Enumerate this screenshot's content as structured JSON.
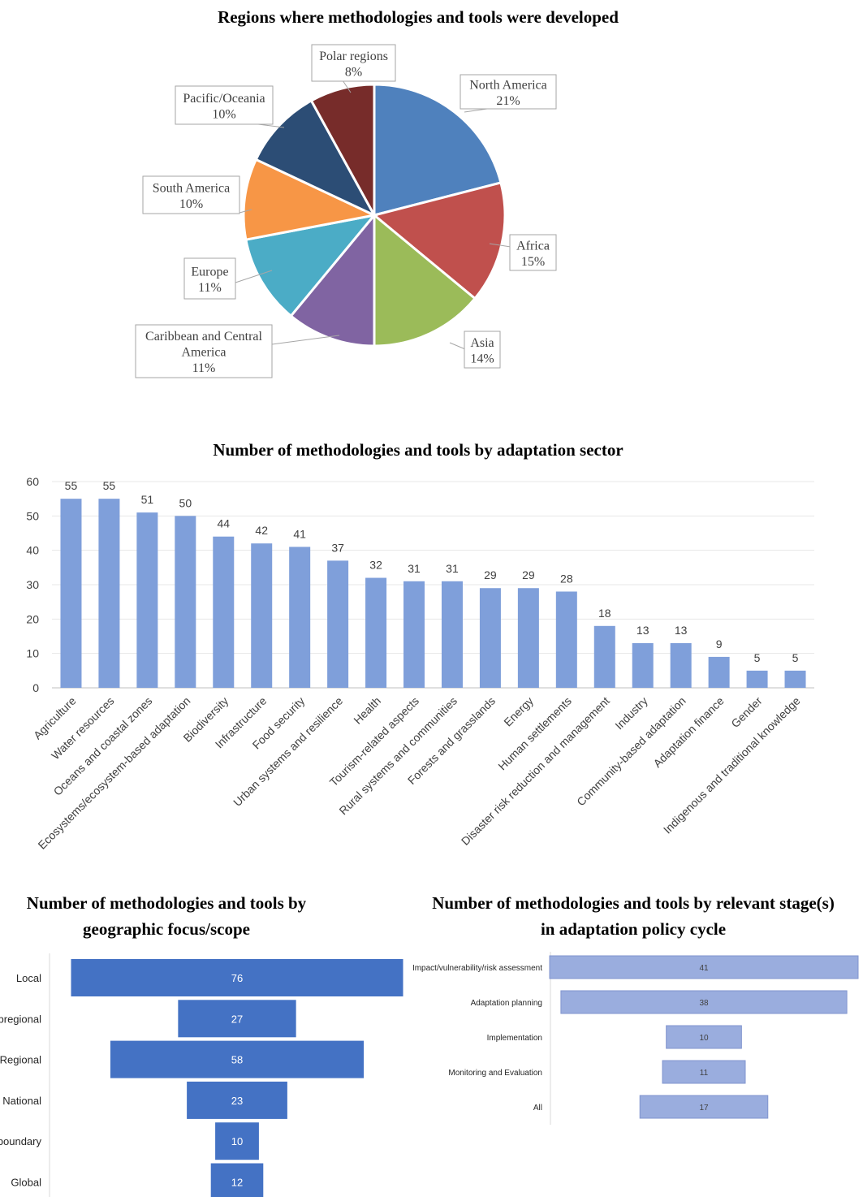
{
  "chart_data": [
    {
      "type": "pie",
      "title": "Regions where methodologies and tools were developed",
      "slices": [
        {
          "label": "North America",
          "value": 21,
          "value_label": "21%",
          "color": "#4F81BD"
        },
        {
          "label": "Africa",
          "value": 15,
          "value_label": "15%",
          "color": "#C0504D"
        },
        {
          "label": "Asia",
          "value": 14,
          "value_label": "14%",
          "color": "#9BBB59"
        },
        {
          "label": "Caribbean and Central America",
          "value": 11,
          "value_label": "11%",
          "color": "#8064A2"
        },
        {
          "label": "Europe",
          "value": 11,
          "value_label": "11%",
          "color": "#4BACC6"
        },
        {
          "label": "South America",
          "value": 10,
          "value_label": "10%",
          "color": "#F79646"
        },
        {
          "label": "Pacific/Oceania",
          "value": 10,
          "value_label": "10%",
          "color": "#2C4D75"
        },
        {
          "label": "Polar regions",
          "value": 8,
          "value_label": "8%",
          "color": "#772C2A"
        }
      ]
    },
    {
      "type": "bar",
      "title": "Number of methodologies and tools by adaptation sector",
      "categories": [
        "Agriculture",
        "Water resources",
        "Oceans and coastal zones",
        "Ecosystems/ecosystem-based adaptation",
        "Biodiversity",
        "Infrastructure",
        "Food security",
        "Urban systems and resilience",
        "Health",
        "Tourism-related aspects",
        "Rural systems and communities",
        "Forests and grasslands",
        "Energy",
        "Human settlements",
        "Disaster risk reduction and management",
        "Industry",
        "Community-based adaptation",
        "Adaptation finance",
        "Gender",
        "Indigenous and traditional knowledge"
      ],
      "values": [
        55,
        55,
        51,
        50,
        44,
        42,
        41,
        37,
        32,
        31,
        31,
        29,
        29,
        28,
        18,
        13,
        13,
        9,
        5,
        5
      ],
      "ylim": [
        0,
        60
      ],
      "yticks": [
        0,
        10,
        20,
        30,
        40,
        50,
        60
      ],
      "grid": true,
      "color": "#7F9FDA"
    },
    {
      "type": "bar",
      "orientation": "horizontal-centered",
      "title": "Number of methodologies and tools by geographic focus/scope",
      "categories": [
        "Local",
        "Subregional",
        "Regional",
        "National",
        "Transboundary",
        "Global"
      ],
      "values": [
        76,
        27,
        58,
        23,
        10,
        12
      ],
      "color": "#4472C4"
    },
    {
      "type": "bar",
      "orientation": "horizontal-centered",
      "title": "Number of methodologies and tools by relevant stage(s) in adaptation policy cycle",
      "categories": [
        "Impact/vulnerability/risk assessment",
        "Adaptation planning",
        "Implementation",
        "Monitoring and Evaluation",
        "All"
      ],
      "values": [
        41,
        38,
        10,
        11,
        17
      ],
      "color": "#9AADDE",
      "border": "#8094CE"
    }
  ]
}
